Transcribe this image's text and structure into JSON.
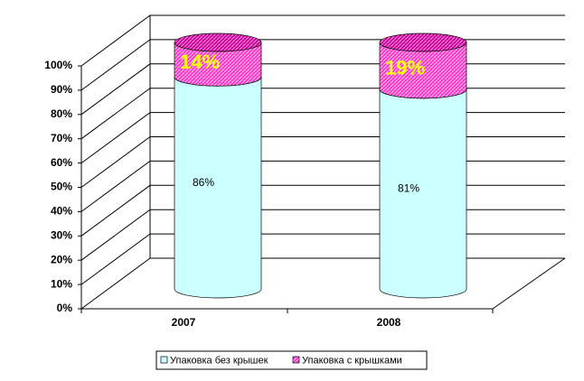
{
  "chart_data": {
    "type": "cylinder-stacked",
    "categories": [
      "2007",
      "2008"
    ],
    "series": [
      {
        "name": "Упаковка без крышек",
        "color": "#ccffff",
        "values": [
          86,
          81
        ],
        "value_labels": [
          "86%",
          "81%"
        ]
      },
      {
        "name": "Упаковка с крышками",
        "color": "#ff33cc",
        "values": [
          14,
          19
        ],
        "value_labels": [
          "14%",
          "19%"
        ]
      }
    ],
    "ylim": [
      0,
      100
    ],
    "yticks": [
      {
        "value": 0,
        "label": "0%"
      },
      {
        "value": 10,
        "label": "10%"
      },
      {
        "value": 20,
        "label": "20%"
      },
      {
        "value": 30,
        "label": "30%"
      },
      {
        "value": 40,
        "label": "40%"
      },
      {
        "value": 50,
        "label": "50%"
      },
      {
        "value": 60,
        "label": "60%"
      },
      {
        "value": 70,
        "label": "70%"
      },
      {
        "value": 80,
        "label": "80%"
      },
      {
        "value": 90,
        "label": "90%"
      },
      {
        "value": 100,
        "label": "100%"
      }
    ],
    "grid": true,
    "legend": "bottom"
  }
}
